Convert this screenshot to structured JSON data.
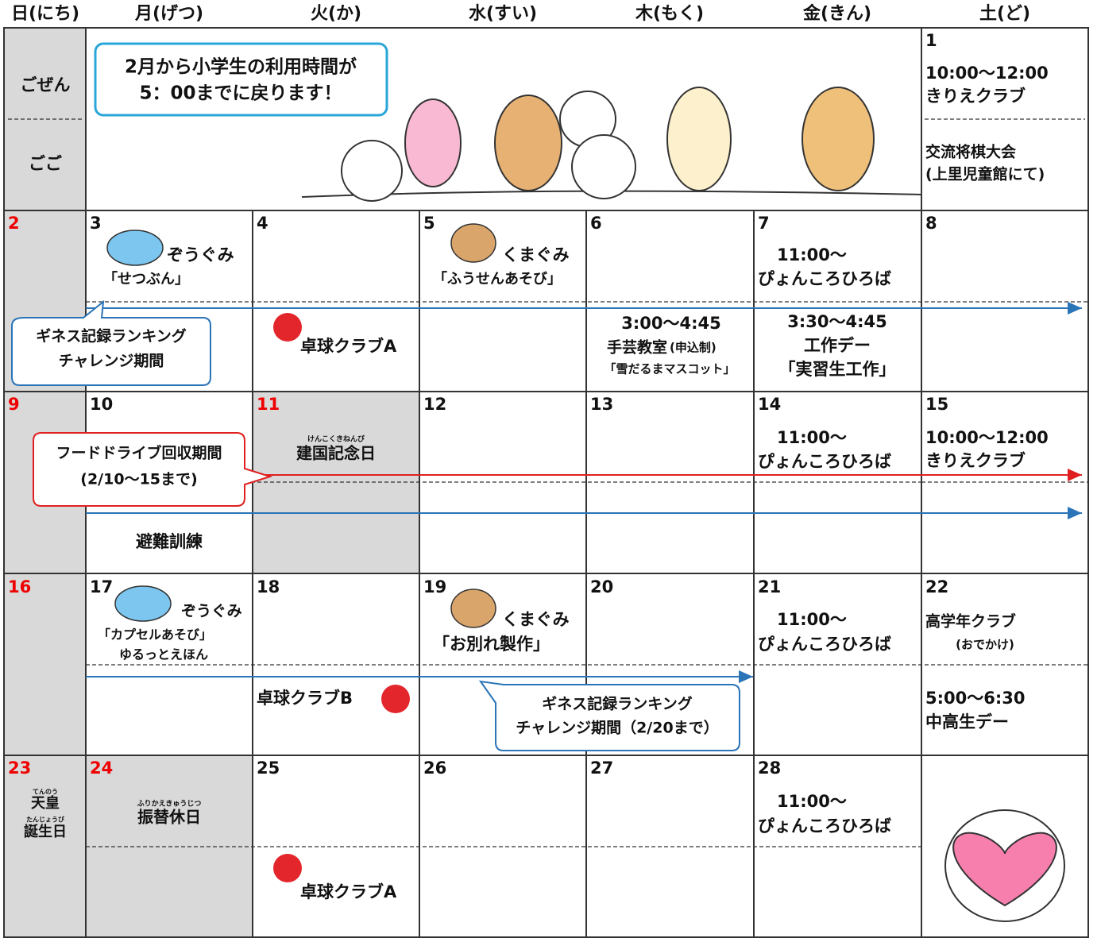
{
  "header": {
    "days": [
      "日(にち)",
      "月(げつ)",
      "火(か)",
      "水(すい)",
      "木(もく)",
      "金(きん)",
      "土(ど)"
    ]
  },
  "week1": {
    "am": "ごぜん",
    "pm": "ごご",
    "notice": [
      "2月から小学生の利用時間が",
      "5：00までに戻ります！"
    ],
    "sat": {
      "date": "1",
      "time": "10:00～12:00",
      "event": "きりえクラブ",
      "event2": "交流将棋大会",
      "place": "(上里児童館にて)"
    }
  },
  "week2": {
    "dates": [
      "2",
      "3",
      "4",
      "5",
      "6",
      "7",
      "8"
    ],
    "mon": [
      "ぞうぐみ",
      "「せつぶん」"
    ],
    "wed": [
      "くまぐみ",
      "「ふうせんあそび」"
    ],
    "fri": [
      "11:00～",
      "ぴょんころひろば"
    ],
    "callout": [
      "ギネス記録ランキング",
      "チャレンジ期間"
    ],
    "tue": "卓球クラブA",
    "thu": {
      "time": "3:00～4:45",
      "title": "手芸教室",
      "note": "(申込制)",
      "detail": "「雪だるまマスコット」"
    },
    "fri2": [
      "3:30～4:45",
      "工作デー",
      "「実習生工作」"
    ]
  },
  "week3": {
    "dates": [
      "9",
      "10",
      "11",
      "12",
      "13",
      "14",
      "15"
    ],
    "tue": {
      "ruby": "けんこくきねんび",
      "title": "建国記念日"
    },
    "fri": [
      "11:00～",
      "ぴょんころひろば"
    ],
    "sat": [
      "10:00～12:00",
      "きりえクラブ"
    ],
    "callout": [
      "フードドライブ回収期間",
      "(2/10～15まで)"
    ],
    "mon": "避難訓練"
  },
  "week4": {
    "dates": [
      "16",
      "17",
      "18",
      "19",
      "20",
      "21",
      "22"
    ],
    "mon": [
      "ぞうぐみ",
      "「カプセルあそび」",
      "ゆるっとえほん"
    ],
    "wed": [
      "くまぐみ",
      "「お別れ製作」"
    ],
    "fri": [
      "11:00～",
      "ぴょんころひろば"
    ],
    "sat": [
      "高学年クラブ",
      "(おでかけ)"
    ],
    "tue": "卓球クラブB",
    "callout": [
      "ギネス記録ランキング",
      "チャレンジ期間（2/20まで）"
    ],
    "sat2": [
      "5:00～6:30",
      "中高生デー"
    ]
  },
  "week5": {
    "dates": [
      "23",
      "24",
      "25",
      "26",
      "27",
      "28"
    ],
    "sun": {
      "ruby1": "てんのう",
      "line1": "天皇",
      "ruby2": "たんじょうび",
      "line2": "誕生日"
    },
    "mon": {
      "ruby": "ふりかえきゅうじつ",
      "title": "振替休日"
    },
    "fri": [
      "11:00～",
      "ぴょんころひろば"
    ],
    "tue": "卓球クラブA"
  }
}
